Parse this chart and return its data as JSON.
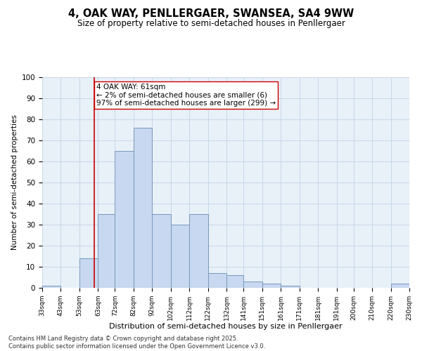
{
  "title": "4, OAK WAY, PENLLERGAER, SWANSEA, SA4 9WW",
  "subtitle": "Size of property relative to semi-detached houses in Penllergaer",
  "xlabel": "Distribution of semi-detached houses by size in Penllergaer",
  "ylabel": "Number of semi-detached properties",
  "bar_color": "#c8d8f0",
  "bar_edge_color": "#7799bb",
  "bins": [
    33,
    43,
    53,
    63,
    72,
    82,
    92,
    102,
    112,
    122,
    132,
    141,
    151,
    161,
    171,
    181,
    191,
    200,
    210,
    220,
    230
  ],
  "bin_labels": [
    "33sqm",
    "43sqm",
    "53sqm",
    "63sqm",
    "72sqm",
    "82sqm",
    "92sqm",
    "102sqm",
    "112sqm",
    "122sqm",
    "132sqm",
    "141sqm",
    "151sqm",
    "161sqm",
    "171sqm",
    "181sqm",
    "191sqm",
    "200sqm",
    "210sqm",
    "220sqm",
    "230sqm"
  ],
  "values": [
    1,
    0,
    14,
    35,
    65,
    76,
    35,
    30,
    35,
    7,
    6,
    3,
    2,
    1,
    0,
    0,
    0,
    0,
    0,
    2
  ],
  "ylim": [
    0,
    100
  ],
  "yticks": [
    0,
    10,
    20,
    30,
    40,
    50,
    60,
    70,
    80,
    90,
    100
  ],
  "vline_x": 61,
  "vline_color": "#cc0000",
  "annotation_text": "4 OAK WAY: 61sqm\n← 2% of semi-detached houses are smaller (6)\n97% of semi-detached houses are larger (299) →",
  "annotation_box_color": "#ffffff",
  "annotation_box_edge": "#cc0000",
  "grid_color": "#c8d8e8",
  "background_color": "#e8f0f8",
  "footer": "Contains HM Land Registry data © Crown copyright and database right 2025.\nContains public sector information licensed under the Open Government Licence v3.0.",
  "title_fontsize": 10.5,
  "subtitle_fontsize": 8.5,
  "annotation_fontsize": 7.5,
  "ylabel_fontsize": 7.5,
  "xlabel_fontsize": 8,
  "ytick_fontsize": 7.5,
  "xtick_fontsize": 6.5,
  "footer_fontsize": 6
}
